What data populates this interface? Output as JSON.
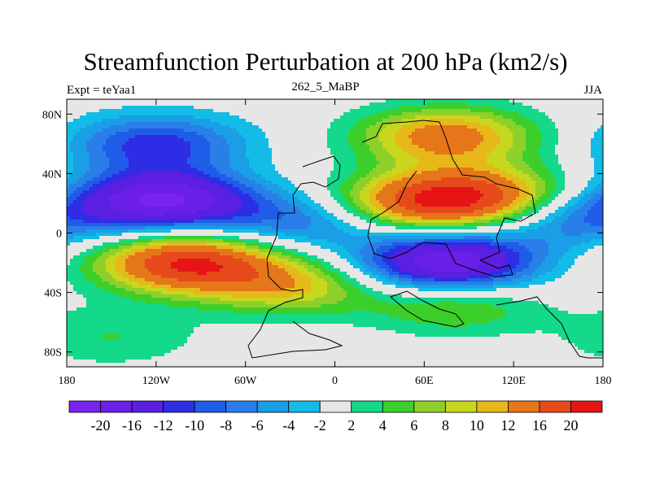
{
  "chart_data": {
    "type": "heatmap",
    "title": "Streamfunction Perturbation at 200 hPa (km2/s)",
    "left_label": "Expt = teYaa1",
    "center_label": "262_5_MaBP",
    "right_label": "JJA",
    "x_ticks": [
      "180",
      "120W",
      "60W",
      "0",
      "60E",
      "120E",
      "180"
    ],
    "x_tick_values": [
      -180,
      -120,
      -60,
      0,
      60,
      120,
      180
    ],
    "y_ticks": [
      "80N",
      "40N",
      "0",
      "40S",
      "80S"
    ],
    "y_tick_values": [
      80,
      40,
      0,
      -40,
      -80
    ],
    "xlim": [
      -180,
      180
    ],
    "ylim": [
      -90,
      90
    ],
    "levels": [
      "-20",
      "-16",
      "-12",
      "-10",
      "-8",
      "-6",
      "-4",
      "-2",
      "2",
      "4",
      "6",
      "8",
      "10",
      "12",
      "16",
      "20"
    ],
    "colors": [
      "#7a22f0",
      "#6b1fe8",
      "#5a1fe0",
      "#2d2de6",
      "#1f5de8",
      "#2a7ee8",
      "#1a9ee6",
      "#12bce6",
      "#e6e6e6",
      "#14d88a",
      "#3ccf2c",
      "#8ed02a",
      "#c8d61e",
      "#e6b81a",
      "#e6761a",
      "#e64a1a",
      "#e61414"
    ],
    "anomalies": [
      {
        "lon": -115,
        "lat": 22,
        "value": -20
      },
      {
        "lon": -120,
        "lat": 60,
        "value": -11
      },
      {
        "lon": -100,
        "lat": -20,
        "value": 20
      },
      {
        "lon": -30,
        "lat": -35,
        "value": 10
      },
      {
        "lon": 75,
        "lat": -20,
        "value": -20
      },
      {
        "lon": 55,
        "lat": 20,
        "value": 14
      },
      {
        "lon": 100,
        "lat": 25,
        "value": 14
      },
      {
        "lon": 75,
        "lat": 65,
        "value": 14
      },
      {
        "lon": -20,
        "lat": 8,
        "value": -8
      },
      {
        "lon": 80,
        "lat": -48,
        "value": 7
      },
      {
        "lon": -150,
        "lat": -70,
        "value": 4
      },
      {
        "lon": 160,
        "lat": 10,
        "value": -8
      }
    ]
  }
}
